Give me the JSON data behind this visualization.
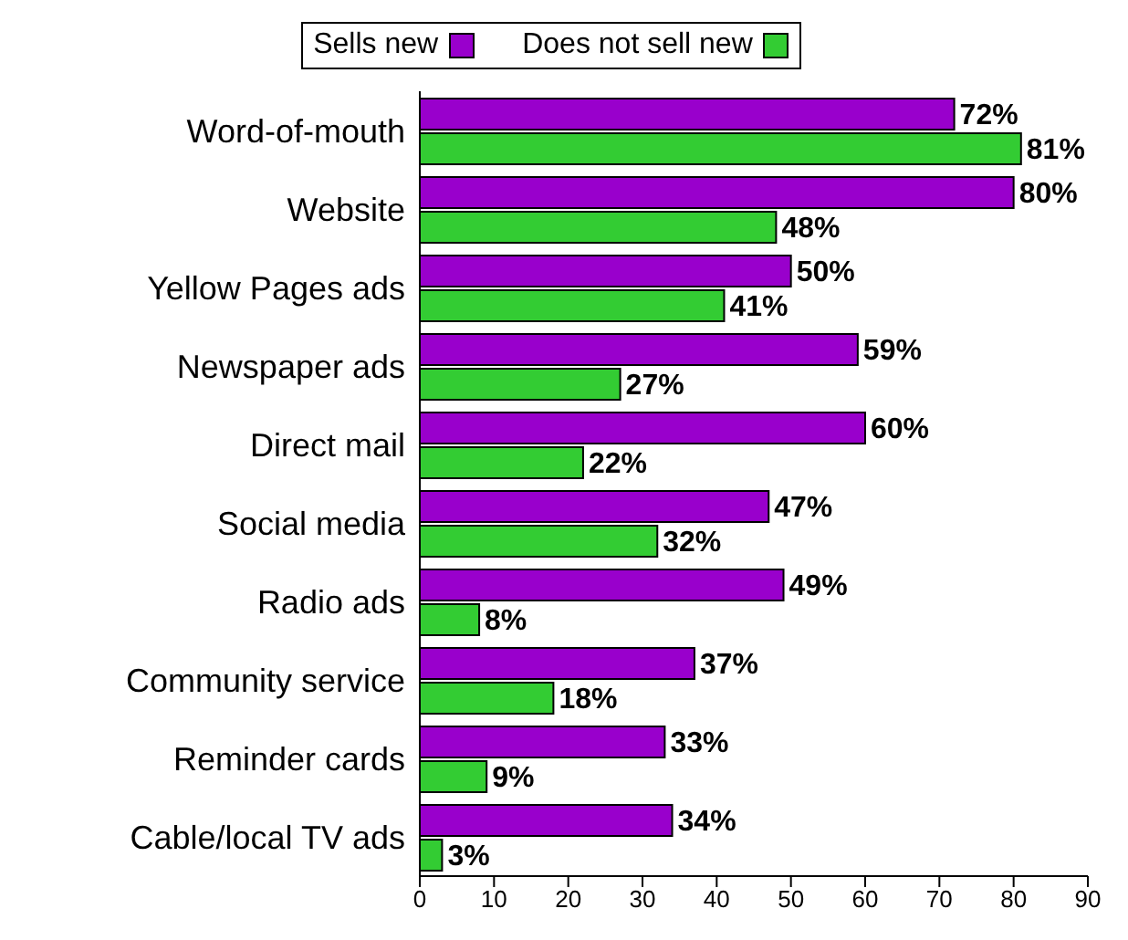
{
  "chart_data": {
    "type": "bar",
    "orientation": "horizontal",
    "categories": [
      "Word-of-mouth",
      "Website",
      "Yellow Pages ads",
      "Newspaper ads",
      "Direct mail",
      "Social media",
      "Radio ads",
      "Community service",
      "Reminder cards",
      "Cable/local TV ads"
    ],
    "series": [
      {
        "name": "Sells new",
        "color": "#9900cc",
        "values": [
          72,
          80,
          50,
          59,
          60,
          47,
          49,
          37,
          33,
          34
        ],
        "value_labels": [
          "72%",
          "80%",
          "50%",
          "59%",
          "60%",
          "47%",
          "49%",
          "37%",
          "33%",
          "34%"
        ]
      },
      {
        "name": "Does not sell new",
        "color": "#33cc33",
        "values": [
          81,
          48,
          41,
          27,
          22,
          32,
          8,
          18,
          9,
          3
        ],
        "value_labels": [
          "81%",
          "48%",
          "41%",
          "27%",
          "22%",
          "32%",
          "8%",
          "18%",
          "9%",
          "3%"
        ]
      }
    ],
    "xlim": [
      0,
      90
    ],
    "xticks": [
      0,
      10,
      20,
      30,
      40,
      50,
      60,
      70,
      80,
      90
    ],
    "grid": false,
    "legend": "top"
  }
}
